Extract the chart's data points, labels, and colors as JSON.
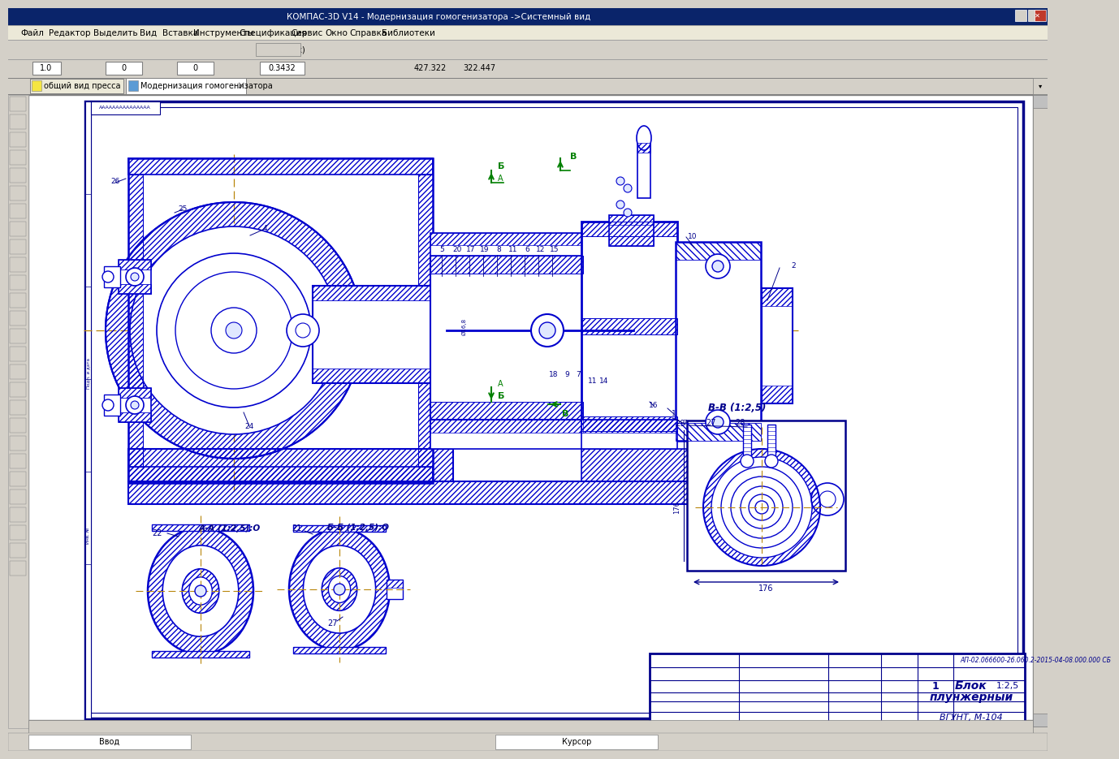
{
  "title": "КОМПАС-3D V14 - Модернизация гомогенизатора ->Системный вид",
  "tab1": "общий вид пресса",
  "tab2": "Модернизация гомогенизатора",
  "bg_outer": "#D4D0C8",
  "bg_canvas": "#FFFFFF",
  "title_bar_color": "#0A246A",
  "menu_bar_color": "#ECE9D8",
  "toolbar_color": "#D4D0C8",
  "blue": "#0000CD",
  "dark_blue": "#00008B",
  "gold": "#B8860B",
  "green": "#008000",
  "title_block_text1": "АП-02.066600-2б.060.2-2015-04-08.000.000 СБ",
  "title_block_name1": "Блок",
  "title_block_name2": "плунжерный",
  "title_block_org": "ВГУНТ, М-104",
  "title_block_num": "1",
  "title_block_scale": "1:2,5",
  "stamp_bb": "В-В (1:2,5)",
  "label_aa": "А-А (1:2,5):О",
  "label_bb2": "Б-Б (1:2,5):О"
}
